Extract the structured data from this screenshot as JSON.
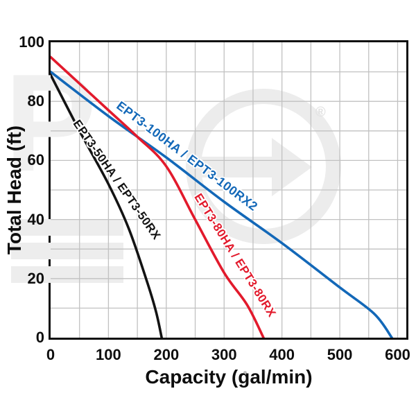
{
  "page": {
    "background": "#ffffff"
  },
  "chart_data": {
    "type": "line",
    "title": "",
    "xlabel": "Capacity (gal/min)",
    "ylabel": "Total Head (ft)",
    "xlim": [
      0,
      615
    ],
    "ylim": [
      0,
      100
    ],
    "x_tick_values": [
      0,
      100,
      200,
      300,
      400,
      500,
      600
    ],
    "y_tick_values": [
      0,
      20,
      40,
      60,
      80,
      100
    ],
    "grid": {
      "x_step": 50,
      "y_step": 10,
      "color": "#c1c1c1",
      "on": true
    },
    "axis_color": "#0e0e0e",
    "legend_position": "labels-on-curves",
    "series": [
      {
        "name": "EPT3-100HA / EPT3-100RX2",
        "color": "#1368b8",
        "points": [
          [
            0,
            90
          ],
          [
            100,
            75
          ],
          [
            200,
            61
          ],
          [
            300,
            46
          ],
          [
            400,
            32
          ],
          [
            500,
            17
          ],
          [
            560,
            8
          ],
          [
            590,
            0
          ]
        ]
      },
      {
        "name": "EPT3-80HA / EPT3-80RX",
        "color": "#e21a2c",
        "points": [
          [
            0,
            95
          ],
          [
            50,
            86
          ],
          [
            100,
            77
          ],
          [
            150,
            68
          ],
          [
            200,
            58
          ],
          [
            250,
            40
          ],
          [
            300,
            22
          ],
          [
            340,
            11
          ],
          [
            368,
            0
          ]
        ]
      },
      {
        "name": "EPT3-50HA / EPT3-50RX",
        "color": "#131313",
        "points": [
          [
            0,
            89
          ],
          [
            50,
            70
          ],
          [
            100,
            52
          ],
          [
            135,
            37
          ],
          [
            165,
            20
          ],
          [
            182,
            9
          ],
          [
            192,
            0
          ]
        ]
      }
    ],
    "curve_labels": [
      {
        "text": "EPT3-100HA / EPT3-100RX2",
        "color": "#1368b8",
        "x": 170,
        "y": 140,
        "angle": 37,
        "font_size": 18
      },
      {
        "text": "EPT3-80HA / EPT3-80RX",
        "color": "#e21a2c",
        "x": 284,
        "y": 271,
        "angle": 58,
        "font_size": 17
      },
      {
        "text": "EPT3-50HA / EPT3-50RX",
        "color": "#131313",
        "x": 109,
        "y": 165,
        "angle": 55,
        "font_size": 17
      }
    ]
  },
  "watermark": {
    "registered_symbol": "®",
    "letter": "P"
  }
}
